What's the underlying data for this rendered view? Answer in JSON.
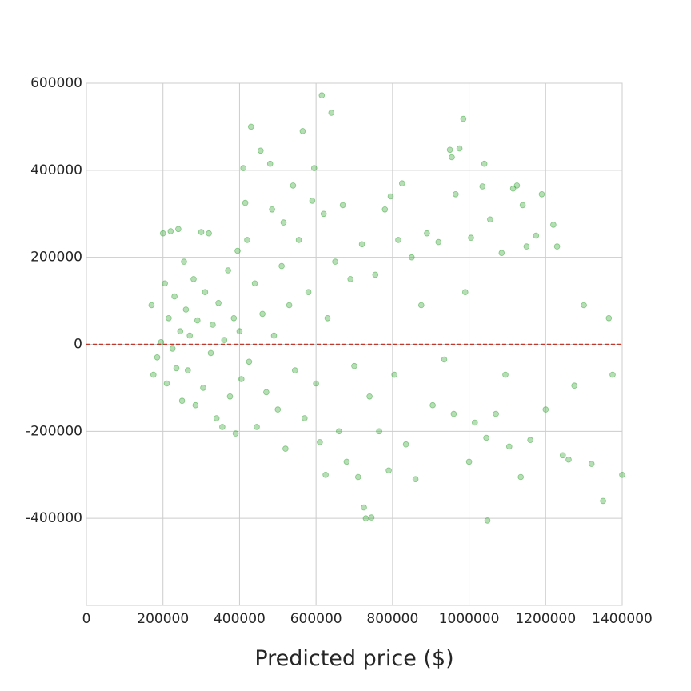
{
  "chart_data": {
    "type": "scatter",
    "title": "",
    "xlabel": "Predicted price ($)",
    "ylabel": "",
    "xlim": [
      0,
      1400000
    ],
    "ylim": [
      -600000,
      600000
    ],
    "x_ticks": [
      0,
      200000,
      400000,
      600000,
      800000,
      1000000,
      1200000,
      1400000
    ],
    "x_tick_labels": [
      "0",
      "200000",
      "400000",
      "600000",
      "800000",
      "1000000",
      "1200000",
      "1400000"
    ],
    "y_ticks": [
      -400000,
      -200000,
      0,
      200000,
      400000,
      600000
    ],
    "y_tick_labels": [
      "-400000",
      "-200000",
      "0",
      "200000",
      "400000",
      "600000"
    ],
    "grid": true,
    "reference_line": {
      "y": 0,
      "style": "dashed",
      "color": "#c0392b"
    },
    "series": [
      {
        "color": "#2ca02c",
        "alpha": 0.35,
        "points": [
          [
            170000,
            90000
          ],
          [
            175000,
            -70000
          ],
          [
            185000,
            -30000
          ],
          [
            195000,
            5000
          ],
          [
            200000,
            255000
          ],
          [
            205000,
            140000
          ],
          [
            210000,
            -90000
          ],
          [
            215000,
            60000
          ],
          [
            220000,
            260000
          ],
          [
            225000,
            -10000
          ],
          [
            230000,
            110000
          ],
          [
            235000,
            -55000
          ],
          [
            240000,
            265000
          ],
          [
            245000,
            30000
          ],
          [
            250000,
            -130000
          ],
          [
            255000,
            190000
          ],
          [
            260000,
            80000
          ],
          [
            265000,
            -60000
          ],
          [
            270000,
            20000
          ],
          [
            280000,
            150000
          ],
          [
            285000,
            -140000
          ],
          [
            290000,
            55000
          ],
          [
            300000,
            258000
          ],
          [
            305000,
            -100000
          ],
          [
            310000,
            120000
          ],
          [
            320000,
            255000
          ],
          [
            325000,
            -20000
          ],
          [
            330000,
            45000
          ],
          [
            340000,
            -170000
          ],
          [
            345000,
            95000
          ],
          [
            355000,
            -190000
          ],
          [
            360000,
            10000
          ],
          [
            370000,
            170000
          ],
          [
            375000,
            -120000
          ],
          [
            385000,
            60000
          ],
          [
            390000,
            -205000
          ],
          [
            395000,
            215000
          ],
          [
            400000,
            30000
          ],
          [
            405000,
            -80000
          ],
          [
            410000,
            405000
          ],
          [
            415000,
            325000
          ],
          [
            420000,
            240000
          ],
          [
            425000,
            -40000
          ],
          [
            430000,
            500000
          ],
          [
            440000,
            140000
          ],
          [
            445000,
            -190000
          ],
          [
            455000,
            445000
          ],
          [
            460000,
            70000
          ],
          [
            470000,
            -110000
          ],
          [
            480000,
            415000
          ],
          [
            485000,
            310000
          ],
          [
            490000,
            20000
          ],
          [
            500000,
            -150000
          ],
          [
            510000,
            180000
          ],
          [
            515000,
            280000
          ],
          [
            520000,
            -240000
          ],
          [
            530000,
            90000
          ],
          [
            540000,
            365000
          ],
          [
            545000,
            -60000
          ],
          [
            555000,
            240000
          ],
          [
            565000,
            490000
          ],
          [
            570000,
            -170000
          ],
          [
            580000,
            120000
          ],
          [
            590000,
            330000
          ],
          [
            595000,
            405000
          ],
          [
            600000,
            -90000
          ],
          [
            610000,
            -225000
          ],
          [
            615000,
            572000
          ],
          [
            620000,
            300000
          ],
          [
            625000,
            -300000
          ],
          [
            630000,
            60000
          ],
          [
            640000,
            532000
          ],
          [
            650000,
            190000
          ],
          [
            660000,
            -200000
          ],
          [
            670000,
            320000
          ],
          [
            680000,
            -270000
          ],
          [
            690000,
            150000
          ],
          [
            700000,
            -50000
          ],
          [
            710000,
            -305000
          ],
          [
            720000,
            230000
          ],
          [
            725000,
            -375000
          ],
          [
            730000,
            -400000
          ],
          [
            740000,
            -120000
          ],
          [
            745000,
            -398000
          ],
          [
            755000,
            160000
          ],
          [
            765000,
            -200000
          ],
          [
            780000,
            310000
          ],
          [
            790000,
            -290000
          ],
          [
            795000,
            340000
          ],
          [
            805000,
            -70000
          ],
          [
            815000,
            240000
          ],
          [
            825000,
            370000
          ],
          [
            835000,
            -230000
          ],
          [
            850000,
            200000
          ],
          [
            860000,
            -310000
          ],
          [
            875000,
            90000
          ],
          [
            890000,
            255000
          ],
          [
            905000,
            -140000
          ],
          [
            920000,
            235000
          ],
          [
            935000,
            -35000
          ],
          [
            950000,
            447000
          ],
          [
            955000,
            430000
          ],
          [
            960000,
            -160000
          ],
          [
            965000,
            345000
          ],
          [
            975000,
            450000
          ],
          [
            985000,
            518000
          ],
          [
            990000,
            120000
          ],
          [
            1000000,
            -270000
          ],
          [
            1005000,
            245000
          ],
          [
            1015000,
            -180000
          ],
          [
            1035000,
            363000
          ],
          [
            1040000,
            415000
          ],
          [
            1045000,
            -215000
          ],
          [
            1048000,
            -405000
          ],
          [
            1055000,
            287000
          ],
          [
            1070000,
            -160000
          ],
          [
            1085000,
            210000
          ],
          [
            1095000,
            -70000
          ],
          [
            1105000,
            -235000
          ],
          [
            1115000,
            358000
          ],
          [
            1125000,
            365000
          ],
          [
            1135000,
            -305000
          ],
          [
            1140000,
            320000
          ],
          [
            1150000,
            225000
          ],
          [
            1160000,
            -220000
          ],
          [
            1175000,
            250000
          ],
          [
            1190000,
            345000
          ],
          [
            1200000,
            -150000
          ],
          [
            1220000,
            275000
          ],
          [
            1230000,
            225000
          ],
          [
            1245000,
            -255000
          ],
          [
            1260000,
            -265000
          ],
          [
            1275000,
            -95000
          ],
          [
            1300000,
            90000
          ],
          [
            1320000,
            -275000
          ],
          [
            1350000,
            -360000
          ],
          [
            1365000,
            60000
          ],
          [
            1375000,
            -70000
          ],
          [
            1400000,
            -300000
          ]
        ]
      }
    ]
  }
}
